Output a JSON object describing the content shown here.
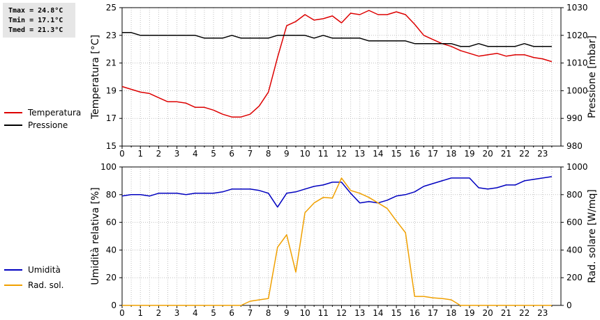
{
  "stats": {
    "tmax": "Tmax = 24.8°C",
    "tmin": "Tmin = 17.1°C",
    "tmed": "Tmed = 21.3°C"
  },
  "legend": {
    "temp": "Temperatura",
    "press": "Pressione",
    "hum": "Umidità",
    "rad": "Rad. sol."
  },
  "colors": {
    "temp": "#dd0000",
    "press": "#000000",
    "hum": "#0000c0",
    "rad": "#f0a000",
    "grid": "#bfbfbf"
  },
  "chart_data": [
    {
      "type": "line",
      "xticks": [
        "0",
        "1",
        "2",
        "3",
        "4",
        "5",
        "6",
        "7",
        "8",
        "9",
        "10",
        "11",
        "12",
        "13",
        "14",
        "15",
        "16",
        "17",
        "18",
        "19",
        "20",
        "21",
        "22",
        "23"
      ],
      "xlim": [
        0,
        24
      ],
      "ylabel": "Temperatura [°C]",
      "ylim": [
        15,
        25
      ],
      "yticks": [
        "15",
        "17",
        "19",
        "21",
        "23",
        "25"
      ],
      "y2label": "Pressione [mbar]",
      "y2lim": [
        980,
        1030
      ],
      "y2ticks": [
        "980",
        "990",
        "1000",
        "1010",
        "1020",
        "1030"
      ],
      "grid": true,
      "series": [
        {
          "name": "Temperatura",
          "axis": "left",
          "x": [
            0,
            0.5,
            1,
            1.5,
            2,
            2.5,
            3,
            3.5,
            4,
            4.5,
            5,
            5.5,
            6,
            6.5,
            7,
            7.5,
            8,
            8.5,
            9,
            9.5,
            10,
            10.5,
            11,
            11.5,
            12,
            12.5,
            13,
            13.5,
            14,
            14.5,
            15,
            15.5,
            16,
            16.5,
            17,
            17.5,
            18,
            18.5,
            19,
            19.5,
            20,
            20.5,
            21,
            21.5,
            22,
            22.5,
            23,
            23.5
          ],
          "values": [
            19.3,
            19.1,
            18.9,
            18.8,
            18.5,
            18.2,
            18.2,
            18.1,
            17.8,
            17.8,
            17.6,
            17.3,
            17.1,
            17.1,
            17.3,
            17.9,
            18.9,
            21.4,
            23.7,
            24.0,
            24.5,
            24.1,
            24.2,
            24.4,
            23.9,
            24.6,
            24.5,
            24.8,
            24.5,
            24.5,
            24.7,
            24.5,
            23.8,
            23.0,
            22.7,
            22.4,
            22.2,
            21.9,
            21.7,
            21.5,
            21.6,
            21.7,
            21.5,
            21.6,
            21.6,
            21.4,
            21.3,
            21.1
          ]
        },
        {
          "name": "Pressione",
          "axis": "right",
          "x": [
            0,
            0.5,
            1,
            1.5,
            2,
            2.5,
            3,
            3.5,
            4,
            4.5,
            5,
            5.5,
            6,
            6.5,
            7,
            7.5,
            8,
            8.5,
            9,
            9.5,
            10,
            10.5,
            11,
            11.5,
            12,
            12.5,
            13,
            13.5,
            14,
            14.5,
            15,
            15.5,
            16,
            16.5,
            17,
            17.5,
            18,
            18.5,
            19,
            19.5,
            20,
            20.5,
            21,
            21.5,
            22,
            22.5,
            23,
            23.5
          ],
          "values": [
            1021,
            1021,
            1020,
            1020,
            1020,
            1020,
            1020,
            1020,
            1020,
            1019,
            1019,
            1019,
            1020,
            1019,
            1019,
            1019,
            1019,
            1020,
            1020,
            1020,
            1020,
            1019,
            1020,
            1019,
            1019,
            1019,
            1019,
            1018,
            1018,
            1018,
            1018,
            1018,
            1017,
            1017,
            1017,
            1017,
            1017,
            1016,
            1016,
            1017,
            1016,
            1016,
            1016,
            1016,
            1017,
            1016,
            1016,
            1016
          ]
        }
      ]
    },
    {
      "type": "line",
      "xticks": [
        "0",
        "1",
        "2",
        "3",
        "4",
        "5",
        "6",
        "7",
        "8",
        "9",
        "10",
        "11",
        "12",
        "13",
        "14",
        "15",
        "16",
        "17",
        "18",
        "19",
        "20",
        "21",
        "22",
        "23"
      ],
      "xlim": [
        0,
        24
      ],
      "ylabel": "Umidità relativa [%]",
      "ylim": [
        0,
        100
      ],
      "yticks": [
        "0",
        "20",
        "40",
        "60",
        "80",
        "100"
      ],
      "y2label": "Rad. solare [W/mq]",
      "y2lim": [
        0,
        1000
      ],
      "y2ticks": [
        "0",
        "200",
        "400",
        "600",
        "800",
        "1000"
      ],
      "grid": true,
      "series": [
        {
          "name": "Umidità",
          "axis": "left",
          "x": [
            0,
            0.5,
            1,
            1.5,
            2,
            2.5,
            3,
            3.5,
            4,
            4.5,
            5,
            5.5,
            6,
            6.5,
            7,
            7.5,
            8,
            8.5,
            9,
            9.5,
            10,
            10.5,
            11,
            11.5,
            12,
            12.5,
            13,
            13.5,
            14,
            14.5,
            15,
            15.5,
            16,
            16.5,
            17,
            17.5,
            18,
            18.5,
            19,
            19.5,
            20,
            20.5,
            21,
            21.5,
            22,
            22.5,
            23,
            23.5
          ],
          "values": [
            79,
            80,
            80,
            79,
            81,
            81,
            81,
            80,
            81,
            81,
            81,
            82,
            84,
            84,
            84,
            83,
            81,
            71,
            81,
            82,
            84,
            86,
            87,
            89,
            89,
            81,
            74,
            75,
            74,
            76,
            79,
            80,
            82,
            86,
            88,
            90,
            92,
            92,
            92,
            85,
            84,
            85,
            87,
            87,
            90,
            91,
            92,
            93
          ]
        },
        {
          "name": "Rad. sol.",
          "axis": "right",
          "x": [
            0,
            0.5,
            1,
            1.5,
            2,
            2.5,
            3,
            3.5,
            4,
            4.5,
            5,
            5.5,
            6,
            6.5,
            7,
            7.5,
            8,
            8.5,
            9,
            9.5,
            10,
            10.5,
            11,
            11.5,
            12,
            12.5,
            13,
            13.5,
            14,
            14.5,
            15,
            15.5,
            16,
            16.5,
            17,
            17.5,
            18,
            18.5,
            19,
            19.5,
            20,
            20.5,
            21,
            21.5,
            22,
            22.5,
            23,
            23.5
          ],
          "values": [
            0,
            0,
            0,
            0,
            0,
            0,
            0,
            0,
            0,
            0,
            0,
            0,
            0,
            0,
            30,
            40,
            50,
            420,
            510,
            240,
            670,
            740,
            780,
            775,
            920,
            830,
            810,
            780,
            740,
            700,
            610,
            525,
            65,
            65,
            55,
            50,
            40,
            0,
            0,
            0,
            0,
            0,
            0,
            0,
            0,
            0,
            0,
            0
          ]
        }
      ]
    }
  ]
}
